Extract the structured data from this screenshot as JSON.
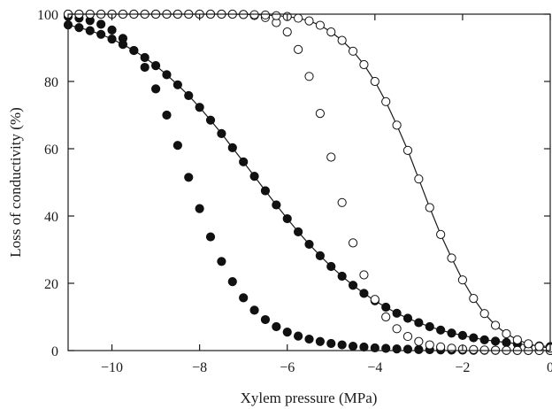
{
  "chart_data": {
    "type": "scatter",
    "title": "",
    "xlabel": "Xylem pressure (MPa)",
    "ylabel": "Loss of conductivity (%)",
    "xlim": [
      -11,
      0
    ],
    "ylim": [
      0,
      100
    ],
    "x_ticks": [
      -10,
      -8,
      -6,
      -4,
      -2,
      0
    ],
    "x_tick_labels": [
      "−10",
      "−8",
      "−6",
      "−4",
      "−2",
      "0"
    ],
    "y_ticks": [
      0,
      20,
      40,
      60,
      80,
      100
    ],
    "y_tick_labels": [
      "0",
      "20",
      "40",
      "60",
      "80",
      "100"
    ],
    "grid": false,
    "legend": "none",
    "marker_color": "#111111",
    "series": [
      {
        "marker": "filled",
        "line": false,
        "x": [
          -11.0,
          -10.75,
          -10.5,
          -10.25,
          -10.0,
          -9.75,
          -9.5,
          -9.25,
          -9.0,
          -8.75,
          -8.5,
          -8.25,
          -8.0,
          -7.75,
          -7.5,
          -7.25,
          -7.0,
          -6.75,
          -6.5,
          -6.25,
          -6.0,
          -5.75,
          -5.5,
          -5.25,
          -5.0,
          -4.75,
          -4.5,
          -4.25,
          -4.0,
          -3.75,
          -3.5,
          -3.25,
          -3.0,
          -2.75,
          -2.5,
          -2.25,
          -2.0,
          -1.75,
          -1.5,
          -1.25,
          -1.0,
          -0.75,
          -0.5,
          -0.25,
          0.0
        ],
        "y": [
          99.3,
          98.8,
          98.1,
          97.0,
          95.3,
          92.8,
          89.2,
          84.2,
          77.8,
          70.0,
          61.0,
          51.5,
          42.2,
          33.8,
          26.5,
          20.5,
          15.7,
          12.0,
          9.2,
          7.1,
          5.5,
          4.3,
          3.4,
          2.7,
          2.1,
          1.7,
          1.3,
          1.05,
          0.8,
          0.65,
          0.5,
          0.4,
          0.3,
          0.25,
          0.2,
          0.15,
          0.12,
          0.1,
          0.08,
          0.06,
          0.05,
          0.04,
          0.03,
          0.02,
          0.02
        ]
      },
      {
        "marker": "filled",
        "line": true,
        "x": [
          -11.0,
          -10.75,
          -10.5,
          -10.25,
          -10.0,
          -9.75,
          -9.5,
          -9.25,
          -9.0,
          -8.75,
          -8.5,
          -8.25,
          -8.0,
          -7.75,
          -7.5,
          -7.25,
          -7.0,
          -6.75,
          -6.5,
          -6.25,
          -6.0,
          -5.75,
          -5.5,
          -5.25,
          -5.0,
          -4.75,
          -4.5,
          -4.25,
          -4.0,
          -3.75,
          -3.5,
          -3.25,
          -3.0,
          -2.75,
          -2.5,
          -2.25,
          -2.0,
          -1.75,
          -1.5,
          -1.25,
          -1.0,
          -0.75,
          -0.5,
          -0.25,
          0.0
        ],
        "y": [
          96.8,
          96.0,
          95.1,
          94.0,
          92.6,
          91.0,
          89.2,
          87.1,
          84.7,
          82.0,
          79.0,
          75.8,
          72.3,
          68.5,
          64.5,
          60.3,
          56.1,
          51.8,
          47.5,
          43.3,
          39.2,
          35.3,
          31.6,
          28.2,
          25.0,
          22.1,
          19.4,
          17.0,
          14.8,
          12.9,
          11.1,
          9.6,
          8.3,
          7.1,
          6.1,
          5.2,
          4.5,
          3.8,
          3.2,
          2.8,
          2.4,
          2.0,
          1.7,
          1.4,
          1.2
        ]
      },
      {
        "marker": "open",
        "line": false,
        "x": [
          -11.0,
          -10.75,
          -10.5,
          -10.25,
          -10.0,
          -9.75,
          -9.5,
          -9.25,
          -9.0,
          -8.75,
          -8.5,
          -8.25,
          -8.0,
          -7.75,
          -7.5,
          -7.25,
          -7.0,
          -6.75,
          -6.5,
          -6.25,
          -6.0,
          -5.75,
          -5.5,
          -5.25,
          -5.0,
          -4.75,
          -4.5,
          -4.25,
          -4.0,
          -3.75,
          -3.5,
          -3.25,
          -3.0,
          -2.75,
          -2.5,
          -2.25,
          -2.0,
          -1.75,
          -1.5,
          -1.25,
          -1.0,
          -0.75,
          -0.5,
          -0.25,
          0.0
        ],
        "y": [
          100.0,
          100.0,
          100.0,
          100.0,
          100.0,
          100.0,
          100.0,
          100.0,
          100.0,
          100.0,
          100.0,
          100.0,
          100.0,
          100.0,
          100.0,
          99.98,
          99.9,
          99.6,
          99.0,
          97.5,
          94.7,
          89.5,
          81.5,
          70.5,
          57.5,
          44.0,
          32.0,
          22.5,
          15.2,
          10.0,
          6.5,
          4.2,
          2.7,
          1.7,
          1.1,
          0.7,
          0.45,
          0.3,
          0.18,
          0.12,
          0.08,
          0.05,
          0.03,
          0.02,
          0.01
        ]
      },
      {
        "marker": "open",
        "line": true,
        "x": [
          -11.0,
          -10.75,
          -10.5,
          -10.25,
          -10.0,
          -9.75,
          -9.5,
          -9.25,
          -9.0,
          -8.75,
          -8.5,
          -8.25,
          -8.0,
          -7.75,
          -7.5,
          -7.25,
          -7.0,
          -6.75,
          -6.5,
          -6.25,
          -6.0,
          -5.75,
          -5.5,
          -5.25,
          -5.0,
          -4.75,
          -4.5,
          -4.25,
          -4.0,
          -3.75,
          -3.5,
          -3.25,
          -3.0,
          -2.75,
          -2.5,
          -2.25,
          -2.0,
          -1.75,
          -1.5,
          -1.25,
          -1.0,
          -0.75,
          -0.5,
          -0.25,
          0.0
        ],
        "y": [
          100.0,
          100.0,
          100.0,
          100.0,
          100.0,
          100.0,
          100.0,
          100.0,
          100.0,
          100.0,
          100.0,
          100.0,
          100.0,
          100.0,
          100.0,
          100.0,
          99.9,
          99.85,
          99.75,
          99.55,
          99.3,
          98.8,
          98.0,
          96.7,
          94.7,
          92.2,
          89.0,
          85.0,
          80.0,
          74.0,
          67.0,
          59.5,
          51.0,
          42.5,
          34.5,
          27.5,
          21.0,
          15.5,
          11.0,
          7.5,
          5.0,
          3.2,
          2.0,
          1.2,
          0.7
        ]
      }
    ]
  }
}
